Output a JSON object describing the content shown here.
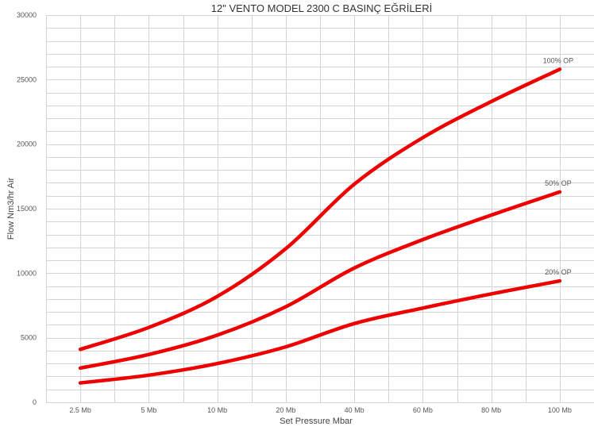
{
  "chart_data": {
    "type": "line",
    "title": "12\" VENTO MODEL 2300 C BASINÇ EĞRİLERİ",
    "xlabel": "Set Pressure Mbar",
    "ylabel": "Flow Nm3/hr Air",
    "categories": [
      "2.5 Mb",
      "5 Mb",
      "10 Mb",
      "20 Mb",
      "40 Mb",
      "60 Mb",
      "80 Mb",
      "100 Mb"
    ],
    "ylim": [
      0,
      30000
    ],
    "yticks": [
      0,
      5000,
      10000,
      15000,
      20000,
      25000,
      30000
    ],
    "grid": true,
    "legend": "end-of-line labels",
    "line_color": "#ee0000",
    "series": [
      {
        "name": "100% OP",
        "values": [
          4100,
          5800,
          8200,
          11900,
          16900,
          20500,
          23300,
          25800
        ]
      },
      {
        "name": "50% OP",
        "values": [
          2650,
          3700,
          5200,
          7400,
          10400,
          12600,
          14500,
          16300
        ]
      },
      {
        "name": "20% OP",
        "values": [
          1500,
          2100,
          3000,
          4300,
          6100,
          7300,
          8400,
          9400
        ]
      }
    ]
  }
}
